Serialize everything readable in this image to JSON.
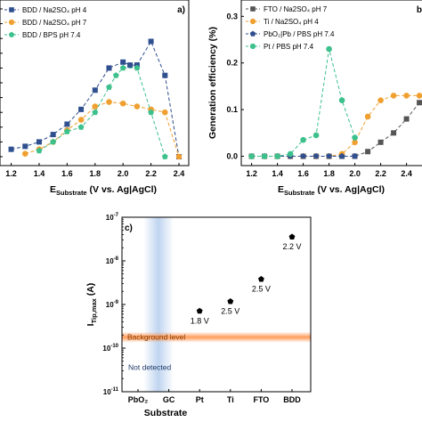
{
  "chart_data": [
    {
      "id": "a",
      "type": "line",
      "panel_label": "a)",
      "xlabel_main": "E",
      "xlabel_sub": "Substrate",
      "xlabel_rest": "(V vs. Ag|AgCl)",
      "ylabel": "",
      "xlim": [
        1.12,
        2.47
      ],
      "ylim": [
        0,
        1.0
      ],
      "xticks": [
        "1.2",
        "1.4",
        "1.6",
        "1.8",
        "2.0",
        "2.2",
        "2.4"
      ],
      "legend_position": "top-left",
      "series": [
        {
          "name": "BDD / Na2SO4 pH 4",
          "color": "#2f4f8f",
          "marker": "square",
          "x": [
            1.2,
            1.3,
            1.4,
            1.5,
            1.6,
            1.7,
            1.8,
            1.9,
            2.0,
            2.05,
            2.1,
            2.2,
            2.3,
            2.4
          ],
          "y": [
            0.05,
            0.07,
            0.1,
            0.15,
            0.22,
            0.32,
            0.45,
            0.6,
            0.64,
            0.62,
            0.62,
            0.78,
            0.55,
            0.0
          ]
        },
        {
          "name": "BDD / Na2SO4 pH 7",
          "color": "#f0a030",
          "marker": "circle",
          "x": [
            1.3,
            1.4,
            1.5,
            1.6,
            1.7,
            1.8,
            1.9,
            2.0,
            2.1,
            2.2,
            2.3,
            2.4
          ],
          "y": [
            0.02,
            0.05,
            0.1,
            0.18,
            0.25,
            0.34,
            0.37,
            0.36,
            0.34,
            0.32,
            0.3,
            0.0
          ]
        },
        {
          "name": "BDD / BPS pH 7.4",
          "color": "#3cc08c",
          "marker": "pentagon",
          "x": [
            1.4,
            1.5,
            1.6,
            1.7,
            1.8,
            1.9,
            1.95,
            2.0,
            2.1,
            2.2,
            2.3
          ],
          "y": [
            0.04,
            0.1,
            0.17,
            0.2,
            0.3,
            0.47,
            0.55,
            0.6,
            0.6,
            0.3,
            0.0
          ]
        }
      ]
    },
    {
      "id": "b",
      "type": "line",
      "panel_label": "b",
      "xlabel_main": "E",
      "xlabel_sub": "Substrate",
      "xlabel_rest": "(V vs. Ag|AgCl)",
      "ylabel": "Generation efficiency (%)",
      "xlim": [
        1.12,
        2.52
      ],
      "ylim": [
        -0.02,
        0.335
      ],
      "xticks": [
        "1.2",
        "1.4",
        "1.6",
        "1.8",
        "2.0",
        "2.2",
        "2.4"
      ],
      "yticks": [
        "0.0",
        "0.1",
        "0.2",
        "0.3"
      ],
      "legend_position": "top-left",
      "series": [
        {
          "name": "FTO / Na2SO4 pH 7",
          "color": "#555555",
          "marker": "square",
          "x": [
            1.2,
            1.3,
            1.4,
            1.5,
            1.6,
            1.7,
            1.8,
            1.9,
            2.0,
            2.1,
            2.2,
            2.3,
            2.4,
            2.5
          ],
          "y": [
            0,
            0,
            0,
            0,
            0,
            0,
            0,
            0,
            0,
            0.01,
            0.03,
            0.05,
            0.08,
            0.115
          ]
        },
        {
          "name": "Ti / Na2SO4 pH 4",
          "color": "#f0a030",
          "marker": "circle",
          "x": [
            1.2,
            1.3,
            1.4,
            1.5,
            1.6,
            1.7,
            1.8,
            1.9,
            2.0,
            2.1,
            2.2,
            2.3,
            2.4,
            2.5
          ],
          "y": [
            0,
            0,
            0,
            0,
            0,
            0,
            0,
            0.005,
            0.03,
            0.085,
            0.12,
            0.13,
            0.13,
            0.13
          ]
        },
        {
          "name": "PbO2|Pb / PBS pH 7.4",
          "color": "#2f4f8f",
          "marker": "pentagon",
          "x": [
            1.2,
            1.3,
            1.4,
            1.5,
            1.6,
            1.7,
            1.8,
            1.9,
            2.0
          ],
          "y": [
            0,
            0,
            0,
            0,
            0,
            0,
            0,
            0,
            0
          ]
        },
        {
          "name": "Pt / PBS pH 7.4",
          "color": "#3cc08c",
          "marker": "circle",
          "x": [
            1.2,
            1.3,
            1.4,
            1.5,
            1.6,
            1.7,
            1.8,
            1.9,
            2.0
          ],
          "y": [
            0,
            0,
            0,
            0.005,
            0.035,
            0.045,
            0.23,
            0.12,
            0.04
          ]
        }
      ]
    },
    {
      "id": "c",
      "type": "scatter",
      "panel_label": "c)",
      "xlabel": "Substrate",
      "ylabel_main": "I",
      "ylabel_sub": "Tip,max",
      "ylabel_rest": "(A)",
      "yscale": "log",
      "ylim_exp": [
        -11,
        -7
      ],
      "ytick_exponents": [
        -11,
        -10,
        -9,
        -8,
        -7
      ],
      "categories": [
        "PbO2",
        "GC",
        "Pt",
        "Ti",
        "FTO",
        "BDD"
      ],
      "points": [
        {
          "category": "Pt",
          "value_exp": -9.15,
          "label": "1.8 V"
        },
        {
          "category": "Ti",
          "value_exp": -8.93,
          "label": "2.5 V"
        },
        {
          "category": "FTO",
          "value_exp": -8.42,
          "label": "2.5 V"
        },
        {
          "category": "BDD",
          "value_exp": -7.45,
          "label": "2.2 V"
        }
      ],
      "background_level_exp": -9.75,
      "background_text": "Background level",
      "not_detected_text": "Not detected"
    }
  ]
}
